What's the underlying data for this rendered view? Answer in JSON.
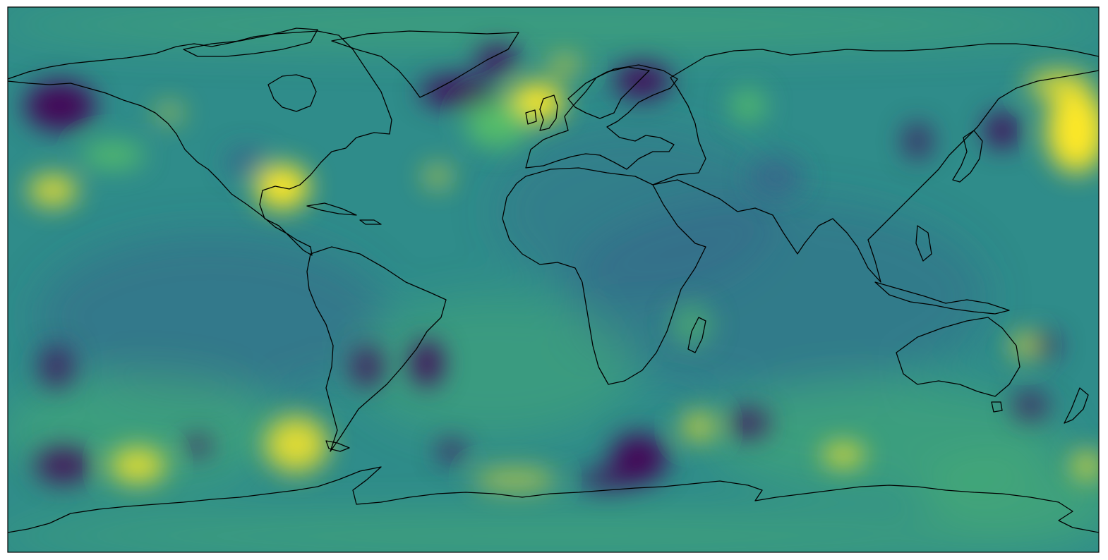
{
  "map": {
    "projection": "plate-carree",
    "coastlines": true,
    "axes_ticks": false,
    "colormap": "viridis",
    "lon_range": [
      -180,
      180
    ],
    "lat_range": [
      -90,
      90
    ],
    "colors": {
      "background": "#2f8c8a",
      "high": "#fde725",
      "mid_high": "#5ec962",
      "mid": "#21918c",
      "mid_low": "#3b528b",
      "low": "#440154",
      "coastline": "#000000",
      "frame": "#000000"
    }
  }
}
